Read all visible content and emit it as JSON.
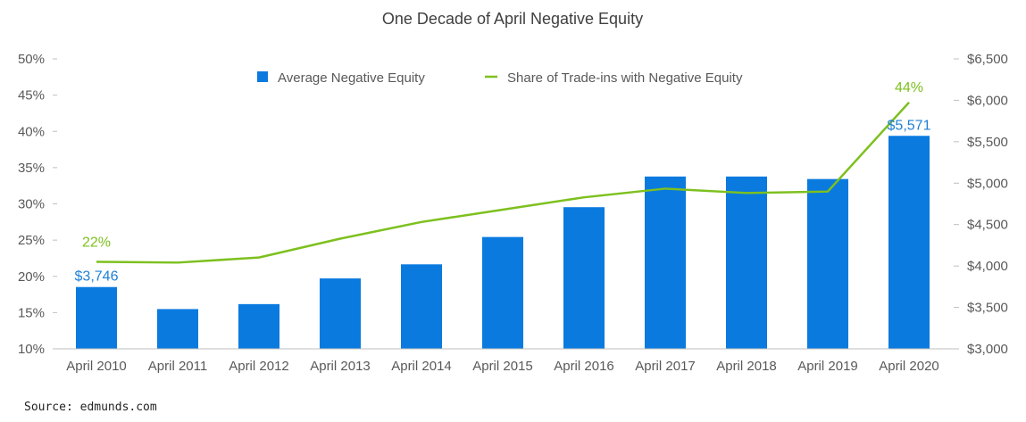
{
  "chart_data": {
    "type": "bar",
    "title": "One Decade of April Negative Equity",
    "categories": [
      "April 2010",
      "April 2011",
      "April 2012",
      "April 2013",
      "April 2014",
      "April 2015",
      "April 2016",
      "April 2017",
      "April 2018",
      "April 2019",
      "April 2020"
    ],
    "series": [
      {
        "name": "Average Negative Equity",
        "type": "bar",
        "axis": "right",
        "color": "#0A7ADF",
        "values": [
          3746,
          3480,
          3540,
          3850,
          4020,
          4350,
          4710,
          5080,
          5080,
          5050,
          5571
        ]
      },
      {
        "name": "Share of Trade-ins with Negative Equity",
        "type": "line",
        "axis": "left",
        "color": "#7DC01E",
        "values": [
          22,
          21.9,
          22.6,
          25.2,
          27.5,
          29.2,
          30.9,
          32.1,
          31.5,
          31.7,
          44
        ]
      }
    ],
    "data_labels": [
      {
        "series": 0,
        "index": 0,
        "text": "$3,746"
      },
      {
        "series": 0,
        "index": 10,
        "text": "$5,571"
      },
      {
        "series": 1,
        "index": 0,
        "text": "22%"
      },
      {
        "series": 1,
        "index": 10,
        "text": "44%"
      }
    ],
    "y_left": {
      "ylim": [
        10,
        50
      ],
      "ticks": [
        50,
        45,
        40,
        35,
        30,
        25,
        20,
        15,
        10
      ],
      "tick_labels": [
        "50%",
        "45%",
        "40%",
        "35%",
        "30%",
        "25%",
        "20%",
        "15%",
        "10%"
      ]
    },
    "y_right": {
      "ylim": [
        3000,
        6500
      ],
      "ticks": [
        6500,
        6000,
        5500,
        5000,
        4500,
        4000,
        3500,
        3000
      ],
      "tick_labels": [
        "$6,500",
        "$6,000",
        "$5,500",
        "$5,000",
        "$4,500",
        "$4,000",
        "$3,500",
        "$3,000"
      ]
    },
    "legend": {
      "placement": "top-center",
      "entries": [
        "Average Negative Equity",
        "Share of Trade-ins with Negative Equity"
      ]
    },
    "grid": false
  },
  "source": "Source: edmunds.com"
}
